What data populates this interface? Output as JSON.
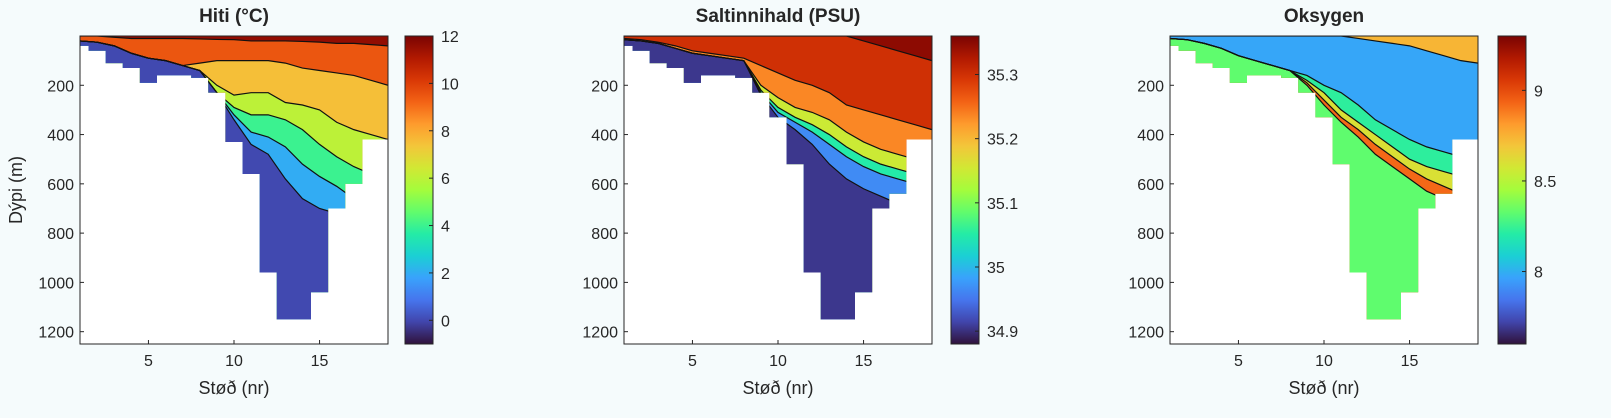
{
  "figure": {
    "ylabel": "Dýpi (m)",
    "colormap": [
      "#30123b",
      "#4145ab",
      "#4675ed",
      "#39a2fc",
      "#1bcfd4",
      "#24eca6",
      "#61fc6c",
      "#a4fc3c",
      "#d1e834",
      "#f3c63a",
      "#fe9b2d",
      "#f36315",
      "#d93806",
      "#b11901",
      "#7a0403"
    ]
  },
  "chart_data": [
    {
      "type": "heatmap",
      "title": "Hiti (°C)",
      "xlabel": "Støð (nr)",
      "ylabel": "Dýpi (m)",
      "xlim": [
        1,
        19
      ],
      "ylim": [
        1250,
        0
      ],
      "xticks": [
        5,
        10,
        15
      ],
      "yticks": [
        200,
        400,
        600,
        800,
        1000,
        1200
      ],
      "bottom_depth": [
        [
          1,
          40
        ],
        [
          2,
          60
        ],
        [
          3,
          110
        ],
        [
          4,
          130
        ],
        [
          5,
          190
        ],
        [
          6,
          160
        ],
        [
          7,
          160
        ],
        [
          8,
          170
        ],
        [
          9,
          230
        ],
        [
          10,
          430
        ],
        [
          11,
          560
        ],
        [
          12,
          960
        ],
        [
          13,
          1150
        ],
        [
          14,
          1150
        ],
        [
          15,
          1040
        ],
        [
          16,
          700
        ],
        [
          17,
          600
        ],
        [
          18,
          420
        ],
        [
          19,
          420
        ]
      ],
      "colorbar": {
        "min": -1,
        "max": 12,
        "ticks": [
          0,
          2,
          4,
          6,
          8,
          10,
          12
        ]
      },
      "contours": [
        {
          "value": 11,
          "depths": [
            0,
            0,
            5,
            10,
            10,
            10,
            10,
            12,
            14,
            15,
            20,
            20,
            20,
            22,
            25,
            30,
            30,
            35,
            40
          ]
        },
        {
          "value": 8,
          "depths": [
            20,
            25,
            40,
            70,
            90,
            100,
            120,
            110,
            100,
            100,
            100,
            100,
            110,
            130,
            140,
            150,
            160,
            180,
            200
          ]
        },
        {
          "value": 7,
          "depths": [
            20,
            25,
            40,
            70,
            90,
            100,
            120,
            140,
            200,
            240,
            230,
            230,
            270,
            280,
            300,
            350,
            380,
            400,
            420
          ]
        },
        {
          "value": 5,
          "depths": [
            20,
            25,
            40,
            70,
            90,
            100,
            120,
            140,
            230,
            290,
            320,
            320,
            340,
            380,
            440,
            490,
            530,
            560,
            600
          ]
        },
        {
          "value": 3,
          "depths": [
            20,
            25,
            40,
            70,
            90,
            100,
            120,
            140,
            230,
            320,
            390,
            410,
            450,
            520,
            570,
            610,
            660,
            700,
            750
          ]
        },
        {
          "value": 1,
          "depths": [
            20,
            25,
            40,
            70,
            90,
            100,
            120,
            140,
            230,
            340,
            440,
            480,
            580,
            660,
            700,
            720,
            740,
            760,
            780
          ]
        }
      ]
    },
    {
      "type": "heatmap",
      "title": "Saltinnihald (PSU)",
      "xlabel": "Støð (nr)",
      "ylabel": "Dýpi (m)",
      "xlim": [
        1,
        19
      ],
      "ylim": [
        1250,
        0
      ],
      "xticks": [
        5,
        10,
        15
      ],
      "yticks": [
        200,
        400,
        600,
        800,
        1000,
        1200
      ],
      "bottom_depth": [
        [
          1,
          40
        ],
        [
          2,
          60
        ],
        [
          3,
          110
        ],
        [
          4,
          130
        ],
        [
          5,
          190
        ],
        [
          6,
          160
        ],
        [
          7,
          160
        ],
        [
          8,
          170
        ],
        [
          9,
          230
        ],
        [
          10,
          330
        ],
        [
          11,
          520
        ],
        [
          12,
          960
        ],
        [
          13,
          1150
        ],
        [
          14,
          1150
        ],
        [
          15,
          1040
        ],
        [
          16,
          700
        ],
        [
          17,
          640
        ],
        [
          18,
          420
        ],
        [
          19,
          420
        ]
      ],
      "colorbar": {
        "min": 34.88,
        "max": 35.36,
        "ticks": [
          34.9,
          35,
          35.1,
          35.2,
          35.3
        ]
      },
      "contours": [
        {
          "value": 35.33,
          "depths": [
            0,
            0,
            0,
            0,
            0,
            0,
            0,
            0,
            0,
            0,
            0,
            0,
            0,
            0,
            20,
            40,
            60,
            80,
            100
          ]
        },
        {
          "value": 35.27,
          "depths": [
            10,
            15,
            25,
            40,
            60,
            70,
            80,
            90,
            120,
            150,
            180,
            200,
            230,
            280,
            300,
            320,
            340,
            360,
            380
          ]
        },
        {
          "value": 35.2,
          "depths": [
            15,
            20,
            30,
            50,
            70,
            80,
            90,
            100,
            200,
            250,
            290,
            310,
            340,
            390,
            430,
            460,
            480,
            500,
            520
          ]
        },
        {
          "value": 35.1,
          "depths": [
            15,
            20,
            30,
            50,
            70,
            80,
            90,
            100,
            220,
            290,
            330,
            360,
            400,
            450,
            490,
            520,
            540,
            560,
            580
          ]
        },
        {
          "value": 35,
          "depths": [
            15,
            20,
            30,
            50,
            70,
            80,
            90,
            100,
            230,
            310,
            350,
            390,
            440,
            490,
            530,
            560,
            580,
            600,
            620
          ]
        },
        {
          "value": 34.93,
          "depths": [
            15,
            20,
            30,
            50,
            70,
            80,
            90,
            100,
            240,
            330,
            380,
            440,
            520,
            580,
            620,
            650,
            680,
            700,
            720
          ]
        }
      ]
    },
    {
      "type": "heatmap",
      "title": "Oksygen",
      "xlabel": "Støð (nr)",
      "ylabel": "Dýpi (m)",
      "xlim": [
        1,
        19
      ],
      "ylim": [
        1250,
        0
      ],
      "xticks": [
        5,
        10,
        15
      ],
      "yticks": [
        200,
        400,
        600,
        800,
        1000,
        1200
      ],
      "bottom_depth": [
        [
          1,
          40
        ],
        [
          2,
          60
        ],
        [
          3,
          110
        ],
        [
          4,
          130
        ],
        [
          5,
          190
        ],
        [
          6,
          160
        ],
        [
          7,
          160
        ],
        [
          8,
          170
        ],
        [
          9,
          230
        ],
        [
          10,
          330
        ],
        [
          11,
          520
        ],
        [
          12,
          960
        ],
        [
          13,
          1150
        ],
        [
          14,
          1150
        ],
        [
          15,
          1040
        ],
        [
          16,
          700
        ],
        [
          17,
          640
        ],
        [
          18,
          420
        ],
        [
          19,
          420
        ]
      ],
      "colorbar": {
        "min": 7.6,
        "max": 9.3,
        "ticks": [
          8,
          8.5,
          9
        ]
      },
      "contours": [
        {
          "value": 7.9,
          "depths": [
            0,
            0,
            0,
            0,
            0,
            0,
            0,
            0,
            0,
            0,
            0,
            10,
            20,
            30,
            40,
            60,
            80,
            100,
            110
          ]
        },
        {
          "value": 8.05,
          "depths": [
            10,
            15,
            30,
            50,
            80,
            100,
            120,
            140,
            160,
            200,
            230,
            280,
            340,
            380,
            420,
            450,
            470,
            490,
            500
          ]
        },
        {
          "value": 8.4,
          "depths": [
            10,
            15,
            30,
            50,
            80,
            100,
            120,
            140,
            180,
            230,
            300,
            350,
            400,
            450,
            500,
            530,
            550,
            570,
            580
          ]
        },
        {
          "value": 8.8,
          "depths": [
            10,
            15,
            30,
            50,
            80,
            100,
            120,
            140,
            190,
            260,
            330,
            380,
            440,
            490,
            540,
            580,
            610,
            640,
            660
          ]
        },
        {
          "value": 9.05,
          "depths": [
            10,
            15,
            30,
            50,
            80,
            100,
            120,
            140,
            200,
            280,
            350,
            410,
            480,
            530,
            580,
            630,
            660,
            690,
            720
          ]
        }
      ]
    }
  ]
}
